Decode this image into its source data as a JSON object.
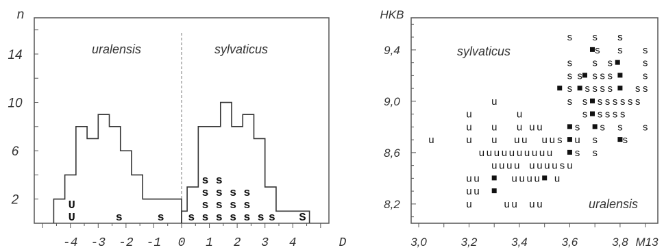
{
  "chart_data": [
    {
      "type": "bar",
      "title": "",
      "ylabel": "n",
      "xlabel": "D",
      "ylim": [
        0,
        17
      ],
      "xlim": [
        -5.3,
        5.3
      ],
      "y_ticks": [
        "2",
        "6",
        "10",
        "14"
      ],
      "y_tick_values": [
        2,
        6,
        10,
        14
      ],
      "x_ticks": [
        "-4",
        "-3",
        "-2",
        "-1",
        "0",
        "1",
        "2",
        "3",
        "4"
      ],
      "x_tick_values": [
        -4,
        -3,
        -2,
        -1,
        0,
        1,
        2,
        3,
        4
      ],
      "divider_x": 0,
      "annotations": {
        "left": "uralensis",
        "right": "sylvaticus"
      },
      "series": [
        {
          "name": "uralensis",
          "bin_edges": [
            -4.6,
            -4.2,
            -3.8,
            -3.4,
            -3.0,
            -2.6,
            -2.2,
            -1.8,
            -1.4,
            -1.0,
            -0.6,
            -0.2,
            0.0
          ],
          "values": [
            2,
            4,
            8,
            7,
            9,
            8,
            6,
            4,
            2,
            2,
            2,
            2
          ]
        },
        {
          "name": "sylvaticus",
          "bin_edges": [
            0.0,
            0.2,
            0.6,
            1.0,
            1.4,
            1.8,
            2.2,
            2.6,
            3.0,
            3.4,
            3.8,
            4.2,
            4.6
          ],
          "values": [
            1,
            3,
            8,
            8,
            10,
            8,
            9,
            7,
            3,
            1,
            1,
            1
          ]
        }
      ],
      "point_markers": [
        {
          "x": -3.95,
          "level": 1,
          "text": "U"
        },
        {
          "x": -3.95,
          "level": 2,
          "text": "U"
        },
        {
          "x": -2.25,
          "level": 1,
          "text": "s"
        },
        {
          "x": -0.75,
          "level": 1,
          "text": "s"
        },
        {
          "x": 0.35,
          "level": 1,
          "text": "s"
        },
        {
          "x": 0.85,
          "level": 1,
          "text": "s"
        },
        {
          "x": 0.85,
          "level": 2,
          "text": "s"
        },
        {
          "x": 0.85,
          "level": 3,
          "text": "s"
        },
        {
          "x": 0.85,
          "level": 4,
          "text": "s"
        },
        {
          "x": 1.35,
          "level": 1,
          "text": "s"
        },
        {
          "x": 1.35,
          "level": 2,
          "text": "s"
        },
        {
          "x": 1.35,
          "level": 3,
          "text": "s"
        },
        {
          "x": 1.35,
          "level": 4,
          "text": "s"
        },
        {
          "x": 1.85,
          "level": 1,
          "text": "s"
        },
        {
          "x": 1.85,
          "level": 2,
          "text": "s"
        },
        {
          "x": 1.85,
          "level": 3,
          "text": "s"
        },
        {
          "x": 2.35,
          "level": 1,
          "text": "s"
        },
        {
          "x": 2.35,
          "level": 2,
          "text": "s"
        },
        {
          "x": 2.35,
          "level": 3,
          "text": "s"
        },
        {
          "x": 2.85,
          "level": 1,
          "text": "s"
        },
        {
          "x": 3.25,
          "level": 1,
          "text": "s"
        },
        {
          "x": 4.35,
          "level": 1,
          "text": "S"
        }
      ]
    },
    {
      "type": "scatter",
      "title": "",
      "ylabel": "HKB",
      "xlabel": "M13",
      "xlim": [
        2.97,
        3.95
      ],
      "ylim": [
        8.05,
        9.65
      ],
      "x_ticks": [
        "3,0",
        "3,2",
        "3,4",
        "3,6",
        "3,8"
      ],
      "x_tick_values": [
        3.0,
        3.2,
        3.4,
        3.6,
        3.8
      ],
      "y_ticks": [
        "8,2",
        "8,6",
        "9,0",
        "9,4"
      ],
      "y_tick_values": [
        8.2,
        8.6,
        9.0,
        9.4
      ],
      "annotations": {
        "top_left": "sylvaticus",
        "bottom_right": "uralensis"
      },
      "legend": [
        {
          "symbol": "s",
          "meaning": "sylvaticus"
        },
        {
          "symbol": "u",
          "meaning": "uralensis"
        },
        {
          "symbol": "■",
          "meaning": ""
        }
      ],
      "rows": [
        {
          "y": 9.5,
          "x": [
            3.6,
            3.7,
            3.8,
            3.8
          ],
          "text": [
            "s",
            "s",
            "s",
            "s"
          ]
        },
        {
          "y": 9.4,
          "x": [
            3.69,
            3.71,
            3.8,
            3.9
          ],
          "text": [
            "■",
            "s",
            "s",
            "s"
          ]
        },
        {
          "y": 9.3,
          "x": [
            3.6,
            3.7,
            3.76,
            3.79,
            3.9
          ],
          "text": [
            "s",
            "s",
            "s",
            "■",
            "s"
          ]
        },
        {
          "y": 9.2,
          "x": [
            3.6,
            3.64,
            3.66,
            3.7,
            3.73,
            3.76,
            3.8,
            3.9
          ],
          "text": [
            "s",
            "s",
            "■",
            "s",
            "s",
            "s",
            "■",
            "s"
          ]
        },
        {
          "y": 9.1,
          "x": [
            3.56,
            3.6,
            3.64,
            3.67,
            3.7,
            3.73,
            3.76,
            3.8,
            3.87,
            3.9
          ],
          "text": [
            "■",
            "s",
            "■",
            "s",
            "s",
            "s",
            "s",
            "■",
            "s",
            "s"
          ]
        },
        {
          "y": 9.0,
          "x": [
            3.3,
            3.6,
            3.66,
            3.69,
            3.72,
            3.75,
            3.78,
            3.81,
            3.84,
            3.87
          ],
          "text": [
            "u",
            "s",
            "s",
            "■",
            "s",
            "s",
            "s",
            "s",
            "s",
            "s"
          ]
        },
        {
          "y": 8.9,
          "x": [
            3.2,
            3.4,
            3.66,
            3.69,
            3.72,
            3.75,
            3.78,
            3.81
          ],
          "text": [
            "u",
            "u",
            "s",
            "■",
            "s",
            "s",
            "s",
            "s"
          ]
        },
        {
          "y": 8.8,
          "x": [
            3.2,
            3.3,
            3.4,
            3.45,
            3.48,
            3.6,
            3.63,
            3.7,
            3.73,
            3.8,
            3.9
          ],
          "text": [
            "u",
            "u",
            "u",
            "u",
            "u",
            "■",
            "s",
            "■",
            "s",
            "s",
            "s"
          ]
        },
        {
          "y": 8.7,
          "x": [
            3.05,
            3.2,
            3.3,
            3.39,
            3.42,
            3.5,
            3.53,
            3.56,
            3.6,
            3.63,
            3.7,
            3.8,
            3.82
          ],
          "text": [
            "u",
            "u",
            "u",
            "u",
            "u",
            "u",
            "u",
            "s",
            "■",
            "u",
            "s",
            "■",
            "s"
          ]
        },
        {
          "y": 8.6,
          "x": [
            3.25,
            3.28,
            3.31,
            3.34,
            3.37,
            3.4,
            3.43,
            3.46,
            3.49,
            3.52,
            3.6,
            3.63,
            3.7
          ],
          "text": [
            "u",
            "u",
            "u",
            "u",
            "u",
            "u",
            "u",
            "u",
            "u",
            "u",
            "■",
            "s",
            "s"
          ]
        },
        {
          "y": 8.5,
          "x": [
            3.3,
            3.33,
            3.36,
            3.39,
            3.45,
            3.48,
            3.51,
            3.54,
            3.57,
            3.6
          ],
          "text": [
            "u",
            "u",
            "u",
            "u",
            "u",
            "u",
            "u",
            "u",
            "s",
            "u"
          ]
        },
        {
          "y": 8.4,
          "x": [
            3.2,
            3.23,
            3.3,
            3.38,
            3.41,
            3.44,
            3.47,
            3.5,
            3.55
          ],
          "text": [
            "u",
            "u",
            "■",
            "u",
            "u",
            "u",
            "u",
            "■",
            "u"
          ]
        },
        {
          "y": 8.3,
          "x": [
            3.2,
            3.23,
            3.3
          ],
          "text": [
            "u",
            "u",
            "■"
          ]
        },
        {
          "y": 8.2,
          "x": [
            3.2,
            3.35,
            3.38,
            3.45,
            3.48
          ],
          "text": [
            "u",
            "u",
            "u",
            "u",
            "u"
          ]
        }
      ]
    }
  ]
}
